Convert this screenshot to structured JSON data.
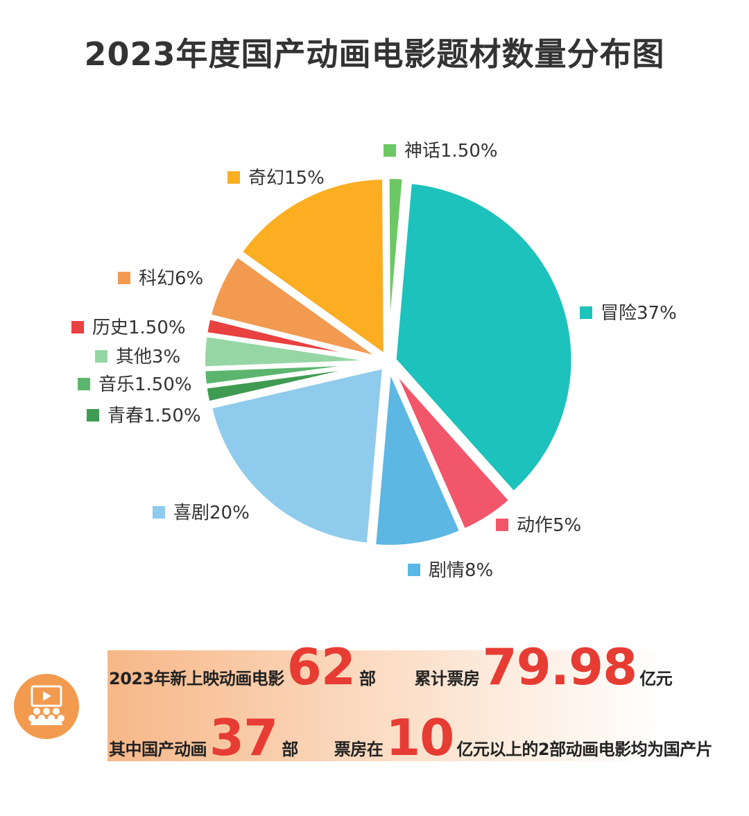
{
  "title": "2023年度国产动画电影题材数量分布图",
  "chart_data": {
    "type": "pie",
    "title": "2023年度国产动画电影题材数量分布图",
    "slices": [
      {
        "label": "神话",
        "value": 1.5,
        "display": "神话1.50%",
        "color": "#6cc864"
      },
      {
        "label": "冒险",
        "value": 37,
        "display": "冒险37%",
        "color": "#1cc2bb"
      },
      {
        "label": "动作",
        "value": 5,
        "display": "动作5%",
        "color": "#f2566b"
      },
      {
        "label": "剧情",
        "value": 8,
        "display": "剧情8%",
        "color": "#5cb7e3"
      },
      {
        "label": "喜剧",
        "value": 20,
        "display": "喜剧20%",
        "color": "#8fcbec"
      },
      {
        "label": "青春",
        "value": 1.5,
        "display": "青春1.50%",
        "color": "#3f9b52"
      },
      {
        "label": "音乐",
        "value": 1.5,
        "display": "音乐1.50%",
        "color": "#5cb56e"
      },
      {
        "label": "其他",
        "value": 3,
        "display": "其他3%",
        "color": "#95d6a4"
      },
      {
        "label": "历史",
        "value": 1.5,
        "display": "历史1.50%",
        "color": "#e94040"
      },
      {
        "label": "科幻",
        "value": 6,
        "display": "科幻6%",
        "color": "#f29a50"
      },
      {
        "label": "奇幻",
        "value": 15,
        "display": "奇幻15%",
        "color": "#fbae22"
      }
    ]
  },
  "summary": {
    "row1": {
      "p1": "2023年新上映动画电影",
      "n1": "62",
      "p2": "部",
      "p3": "累计票房",
      "n2": "79.98",
      "p4": "亿元"
    },
    "row2": {
      "p1": "其中国产动画",
      "n1": "37",
      "p2": "部",
      "p3": "票房在",
      "n2": "10",
      "p4": "亿元以上的2部动画电影均为国产片"
    },
    "icon": "cinema-audience-icon",
    "accent_color": "#e63c34"
  }
}
